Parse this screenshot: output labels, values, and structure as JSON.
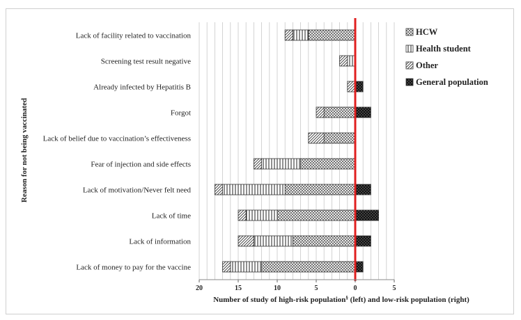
{
  "chart_data": {
    "type": "bar",
    "orientation": "horizontal-stacked-diverging",
    "title": "",
    "xlabel": "Number of study of high-risk population§ (left) and low-risk population (right)",
    "xlabel_main": "Number of study of high-risk population",
    "xlabel_sup": "§",
    "xlabel_rest": " (left) and low-risk population (right)",
    "ylabel": "Reason for not being vaccinated",
    "xlim": [
      -20,
      5
    ],
    "xticks": [
      -20,
      -15,
      -10,
      -5,
      0,
      5
    ],
    "xtick_labels": [
      "20",
      "15",
      "10",
      "5",
      "0",
      "5"
    ],
    "grid": "vertical",
    "legend_position": "right",
    "categories": [
      "Lack of facility related to vaccination",
      "Screening test result negative",
      "Already infected by Hepatitis B",
      "Forgot",
      "Lack of belief due to vaccination’s effectiveness",
      "Fear of  injection and side effects",
      "Lack of motivation/Never felt need",
      "Lack of time",
      "Lack of information",
      "Lack of money to pay for the vaccine"
    ],
    "series": [
      {
        "name": "HCW",
        "side": "left",
        "pattern": "crosshatch",
        "values": [
          6,
          0,
          0,
          4,
          4,
          7,
          9,
          10,
          8,
          12
        ]
      },
      {
        "name": "Health student",
        "side": "left",
        "pattern": "vertical",
        "values": [
          2,
          1,
          0,
          0,
          0,
          5,
          8,
          4,
          5,
          4
        ]
      },
      {
        "name": "Other",
        "side": "left",
        "pattern": "diagonal",
        "values": [
          1,
          1,
          1,
          1,
          2,
          1,
          1,
          1,
          2,
          1
        ]
      },
      {
        "name": "General population",
        "side": "right",
        "pattern": "dots",
        "values": [
          0,
          0,
          1,
          2,
          0,
          0,
          2,
          3,
          2,
          1
        ]
      }
    ],
    "reference_line": {
      "x": 0,
      "color": "#e02020"
    }
  }
}
